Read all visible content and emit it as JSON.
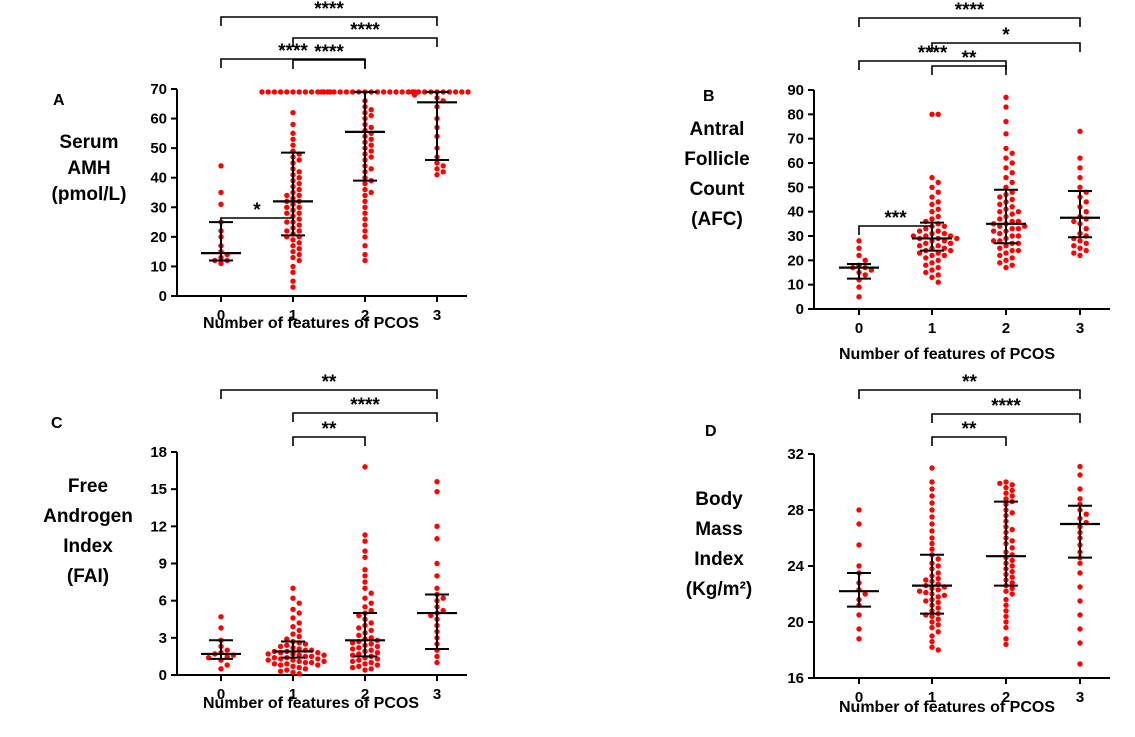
{
  "figure": {
    "marker_color": "#ff0000",
    "summary_color": "#000000",
    "background": "#ffffff"
  },
  "chart_data": [
    {
      "panel_label": "A",
      "type": "scatter",
      "ylabel_lines": [
        "Serum",
        "AMH",
        "(pmol/L)"
      ],
      "xlabel": "Number of features of  PCOS",
      "categories": [
        "0",
        "1",
        "2",
        "3"
      ],
      "ylim": [
        0,
        70
      ],
      "yticks": [
        0,
        10,
        20,
        30,
        40,
        50,
        60,
        70
      ],
      "yticklabels": [
        "0",
        "10",
        "20",
        "30",
        "40",
        "50",
        "60",
        "70"
      ],
      "median": [
        14.5,
        32,
        55.5,
        65.5
      ],
      "q1": [
        12,
        20.5,
        39,
        46
      ],
      "q3": [
        25,
        48.5,
        69,
        69
      ],
      "points": [
        [
          44,
          35,
          31,
          25,
          22,
          20,
          17,
          15,
          14,
          13,
          12,
          12,
          11
        ],
        [
          69,
          69,
          69,
          69,
          69,
          69,
          69,
          69,
          69,
          69,
          69,
          69,
          62,
          58,
          55,
          53,
          51,
          49,
          48,
          47,
          46,
          45,
          43,
          42,
          41,
          40,
          39,
          38,
          37,
          36,
          35,
          34,
          34,
          33,
          32,
          32,
          31,
          30,
          30,
          29,
          28,
          28,
          27,
          26,
          25,
          25,
          24,
          23,
          22,
          22,
          21,
          20,
          20,
          19,
          18,
          17,
          16,
          15,
          14,
          13,
          12,
          10,
          8,
          5,
          3
        ],
        [
          69,
          69,
          69,
          69,
          69,
          69,
          69,
          69,
          69,
          69,
          69,
          69,
          69,
          69,
          69,
          69,
          68,
          66,
          64,
          63,
          62,
          61,
          60,
          58,
          57,
          56,
          55,
          54,
          53,
          52,
          51,
          50,
          49,
          48,
          47,
          46,
          44,
          43,
          42,
          40,
          39,
          38,
          36,
          35,
          34,
          32,
          30,
          28,
          26,
          24,
          22,
          20,
          17,
          14,
          12
        ],
        [
          69,
          69,
          69,
          69,
          69,
          69,
          69,
          69,
          69,
          69,
          67,
          66,
          64,
          60,
          57,
          54,
          50,
          47,
          45,
          44,
          43,
          42,
          41
        ]
      ],
      "comparisons": [
        {
          "from": "0",
          "to": "1",
          "label": "*"
        },
        {
          "from": "1",
          "to": "2",
          "label": "****"
        },
        {
          "from": "1",
          "to": "3",
          "label": "****"
        },
        {
          "from": "0",
          "to": "2",
          "label": "****"
        },
        {
          "from": "0",
          "to": "3",
          "label": "****"
        }
      ]
    },
    {
      "panel_label": "B",
      "type": "scatter",
      "ylabel_lines": [
        "Antral",
        "Follicle",
        "Count",
        "(AFC)"
      ],
      "xlabel": "Number of features of  PCOS",
      "categories": [
        "0",
        "1",
        "2",
        "3"
      ],
      "ylim": [
        0,
        90
      ],
      "yticks": [
        0,
        10,
        20,
        30,
        40,
        50,
        60,
        70,
        80,
        90
      ],
      "yticklabels": [
        "0",
        "10",
        "20",
        "30",
        "40",
        "50",
        "60",
        "70",
        "80",
        "90"
      ],
      "median": [
        17,
        29,
        35,
        37.5
      ],
      "q1": [
        12.5,
        24,
        27,
        29.5
      ],
      "q3": [
        18.5,
        35.5,
        49,
        48.5
      ],
      "points": [
        [
          28,
          25,
          22,
          20,
          18,
          17,
          17,
          16,
          15,
          14,
          12,
          9,
          5
        ],
        [
          80,
          80,
          54,
          52,
          50,
          48,
          46,
          44,
          43,
          41,
          40,
          38,
          37,
          36,
          35,
          34,
          34,
          33,
          32,
          32,
          31,
          31,
          30,
          30,
          30,
          29,
          29,
          29,
          28,
          28,
          27,
          27,
          26,
          26,
          25,
          25,
          24,
          24,
          23,
          23,
          22,
          22,
          21,
          20,
          19,
          18,
          17,
          16,
          15,
          14,
          13,
          11
        ],
        [
          87,
          83,
          77,
          72,
          66,
          64,
          62,
          60,
          58,
          56,
          54,
          52,
          50,
          48,
          47,
          46,
          45,
          44,
          43,
          42,
          41,
          40,
          40,
          39,
          38,
          37,
          36,
          36,
          35,
          35,
          34,
          34,
          33,
          33,
          32,
          32,
          31,
          30,
          30,
          29,
          28,
          28,
          27,
          27,
          26,
          25,
          24,
          24,
          23,
          22,
          21,
          20,
          19,
          18,
          17
        ],
        [
          73,
          62,
          58,
          54,
          50,
          48,
          46,
          44,
          42,
          40,
          38,
          37,
          36,
          35,
          33,
          31,
          30,
          29,
          28,
          27,
          26,
          25,
          24,
          23,
          22
        ]
      ],
      "comparisons": [
        {
          "from": "0",
          "to": "1",
          "label": "***"
        },
        {
          "from": "1",
          "to": "2",
          "label": "**"
        },
        {
          "from": "1",
          "to": "3",
          "label": "*"
        },
        {
          "from": "0",
          "to": "2",
          "label": "****"
        },
        {
          "from": "0",
          "to": "3",
          "label": "****"
        }
      ]
    },
    {
      "panel_label": "C",
      "type": "scatter",
      "ylabel_lines": [
        "Free",
        "Androgen",
        "Index",
        "(FAI)"
      ],
      "xlabel": "Number of features of  PCOS",
      "categories": [
        "0",
        "1",
        "2",
        "3"
      ],
      "ylim": [
        0,
        18
      ],
      "yticks": [
        0,
        3,
        6,
        9,
        12,
        15,
        18
      ],
      "yticklabels": [
        "0",
        "3",
        "6",
        "9",
        "12",
        "15",
        "18"
      ],
      "median": [
        1.7,
        1.9,
        2.8,
        5
      ],
      "q1": [
        1.3,
        1.4,
        1.5,
        2.1
      ],
      "q3": [
        2.8,
        2.7,
        5,
        6.5
      ],
      "points": [
        [
          4.7,
          3.8,
          2.8,
          2.3,
          2.0,
          1.8,
          1.7,
          1.6,
          1.5,
          1.4,
          1.2,
          0.8,
          0.5
        ],
        [
          7.0,
          6.2,
          5.8,
          5.3,
          5.0,
          4.6,
          4.2,
          3.9,
          3.6,
          3.3,
          3.1,
          2.9,
          2.7,
          2.6,
          2.5,
          2.4,
          2.3,
          2.2,
          2.1,
          2.0,
          2.0,
          1.9,
          1.9,
          1.8,
          1.8,
          1.7,
          1.7,
          1.6,
          1.6,
          1.5,
          1.5,
          1.4,
          1.4,
          1.3,
          1.3,
          1.2,
          1.2,
          1.1,
          1.1,
          1.0,
          1.0,
          0.9,
          0.9,
          0.8,
          0.8,
          0.7,
          0.6,
          0.5,
          0.4,
          0.3,
          0.2,
          0.1
        ],
        [
          16.8,
          11.3,
          10.8,
          10.0,
          9.5,
          8.5,
          8.0,
          7.5,
          7.0,
          6.6,
          6.2,
          5.8,
          5.5,
          5.2,
          5.0,
          4.8,
          4.5,
          4.2,
          4.0,
          3.8,
          3.6,
          3.4,
          3.2,
          3.0,
          2.9,
          2.8,
          2.7,
          2.6,
          2.5,
          2.4,
          2.3,
          2.2,
          2.1,
          2.0,
          1.9,
          1.8,
          1.7,
          1.6,
          1.5,
          1.4,
          1.3,
          1.2,
          1.1,
          1.0,
          0.9,
          0.8,
          0.7,
          0.6,
          0.5,
          0.4
        ],
        [
          15.6,
          14.8,
          12.0,
          11.0,
          9.0,
          8.0,
          7.0,
          6.5,
          6.2,
          6.0,
          5.5,
          5.2,
          5.0,
          4.8,
          4.5,
          4.0,
          3.5,
          3.0,
          2.5,
          2.0,
          1.5,
          1.0
        ]
      ],
      "comparisons": [
        {
          "from": "1",
          "to": "2",
          "label": "**"
        },
        {
          "from": "1",
          "to": "3",
          "label": "****"
        },
        {
          "from": "0",
          "to": "3",
          "label": "**"
        }
      ]
    },
    {
      "panel_label": "D",
      "type": "scatter",
      "ylabel_lines": [
        "Body",
        "Mass",
        "Index",
        "(Kg/m²)"
      ],
      "xlabel": "Number of features of  PCOS",
      "categories": [
        "0",
        "1",
        "2",
        "3"
      ],
      "ylim": [
        16,
        32
      ],
      "yticks": [
        16,
        20,
        24,
        28,
        32
      ],
      "yticklabels": [
        "16",
        "20",
        "24",
        "28",
        "32"
      ],
      "median": [
        22.2,
        22.6,
        24.7,
        27
      ],
      "q1": [
        21.1,
        20.6,
        22.6,
        24.6
      ],
      "q3": [
        23.5,
        24.8,
        28.6,
        28.3
      ],
      "points": [
        [
          28,
          27,
          25.5,
          24,
          23.5,
          22.8,
          22.3,
          22,
          21.6,
          21.2,
          20.5,
          19.5,
          18.8
        ],
        [
          31,
          30,
          29.5,
          29,
          28.5,
          28,
          27.5,
          27,
          26.5,
          26,
          25.6,
          25.2,
          24.8,
          24.5,
          24.2,
          24,
          23.8,
          23.5,
          23.3,
          23.1,
          22.9,
          22.7,
          22.6,
          22.4,
          22.3,
          22.1,
          22,
          21.8,
          21.6,
          21.4,
          21.2,
          21,
          20.8,
          20.6,
          20.4,
          20.2,
          20,
          19.8,
          19.6,
          19.3,
          19,
          18.6,
          18.2,
          18,
          21.5,
          22.5,
          23,
          20.5,
          21.9,
          22.2
        ],
        [
          30,
          29.8,
          29.6,
          29.4,
          29.2,
          29,
          28.8,
          28.6,
          28.4,
          28,
          27.6,
          27.2,
          26.8,
          26.4,
          26,
          25.6,
          25.3,
          25,
          24.8,
          24.6,
          24.4,
          24.2,
          24,
          23.8,
          23.6,
          23.4,
          23.2,
          23,
          22.8,
          22.6,
          22.4,
          22.2,
          22,
          21.6,
          21.2,
          20.8,
          20.4,
          20,
          19.6,
          18.8,
          18.4,
          25.8,
          26.6,
          27.8,
          29.9
        ],
        [
          31.1,
          30.5,
          29.5,
          28.8,
          28.4,
          28,
          27.7,
          27.4,
          27.1,
          26.8,
          26.4,
          26,
          25.5,
          25,
          24.6,
          24.2,
          23.5,
          22.5,
          21.5,
          20.5,
          19.5,
          18.5,
          17
        ]
      ],
      "comparisons": [
        {
          "from": "1",
          "to": "2",
          "label": "**"
        },
        {
          "from": "1",
          "to": "3",
          "label": "****"
        },
        {
          "from": "0",
          "to": "3",
          "label": "**"
        }
      ]
    }
  ]
}
